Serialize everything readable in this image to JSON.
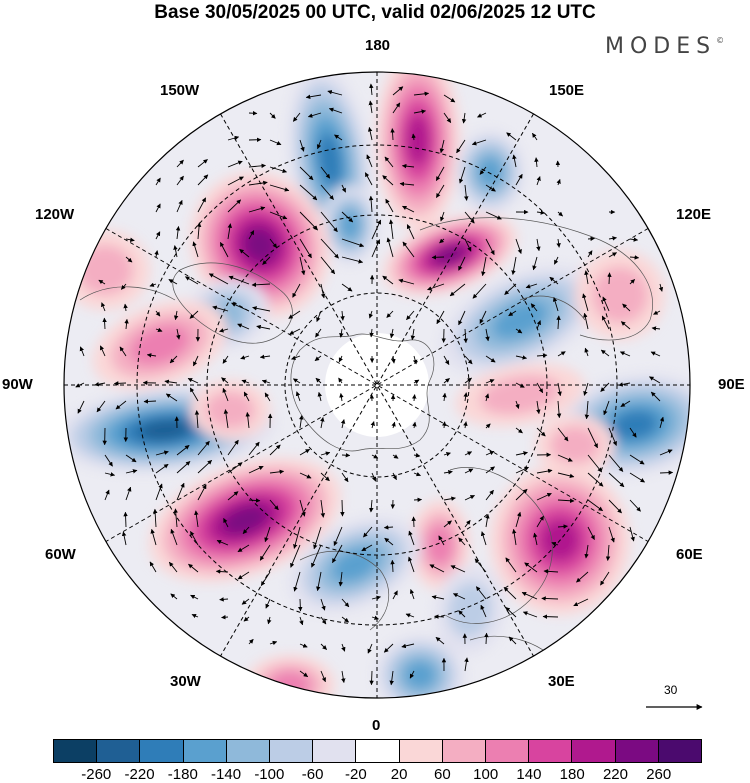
{
  "title": "Base 30/05/2025 00 UTC, valid 02/06/2025 12 UTC",
  "logo": "MODES",
  "logo_mark": "©",
  "longitude_labels": {
    "lon_180": "180",
    "lon_150w": "150W",
    "lon_150e": "150E",
    "lon_120w": "120W",
    "lon_120e": "120E",
    "lon_90w": "90W",
    "lon_90e": "90E",
    "lon_60w": "60W",
    "lon_60e": "60E",
    "lon_30w": "30W",
    "lon_30e": "30E",
    "lon_0": "0"
  },
  "reference_vector": "30",
  "colorbar": {
    "tick_labels": [
      "-260",
      "-220",
      "-180",
      "-140",
      "-100",
      "-60",
      "-20",
      "20",
      "60",
      "100",
      "140",
      "180",
      "220",
      "260"
    ],
    "colors": [
      "#0c3f64",
      "#1f5f94",
      "#2f7db8",
      "#5aa0cf",
      "#8fb9da",
      "#bccde6",
      "#e1e1ef",
      "#ffffff",
      "#fad7d7",
      "#f4aec2",
      "#ec7fb1",
      "#d8449f",
      "#b0198e",
      "#7b0a82",
      "#4b0a6e"
    ]
  }
}
